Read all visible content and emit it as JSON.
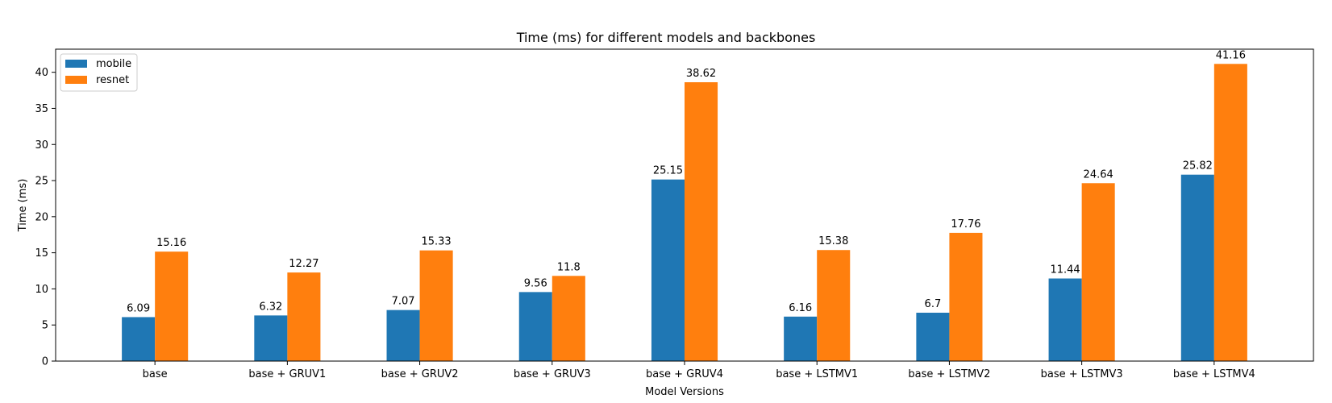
{
  "chart_data": {
    "type": "bar",
    "title": "Time (ms) for different models and backbones",
    "xlabel": "Model Versions",
    "ylabel": "Time (ms)",
    "categories": [
      "base",
      "base + GRUV1",
      "base + GRUV2",
      "base + GRUV3",
      "base + GRUV4",
      "base + LSTMV1",
      "base + LSTMV2",
      "base + LSTMV3",
      "base + LSTMV4"
    ],
    "series": [
      {
        "name": "mobile",
        "color": "#1f77b4",
        "values": [
          6.09,
          6.32,
          7.07,
          9.56,
          25.15,
          6.16,
          6.7,
          11.44,
          25.82
        ]
      },
      {
        "name": "resnet",
        "color": "#ff7f0e",
        "values": [
          15.16,
          12.27,
          15.33,
          11.8,
          38.62,
          15.38,
          17.76,
          24.64,
          41.16
        ]
      }
    ],
    "ylim": [
      0,
      43.2
    ],
    "yticks": [
      0,
      5,
      10,
      15,
      20,
      25,
      30,
      35,
      40
    ],
    "grid": false,
    "legend_position": "top-left"
  }
}
